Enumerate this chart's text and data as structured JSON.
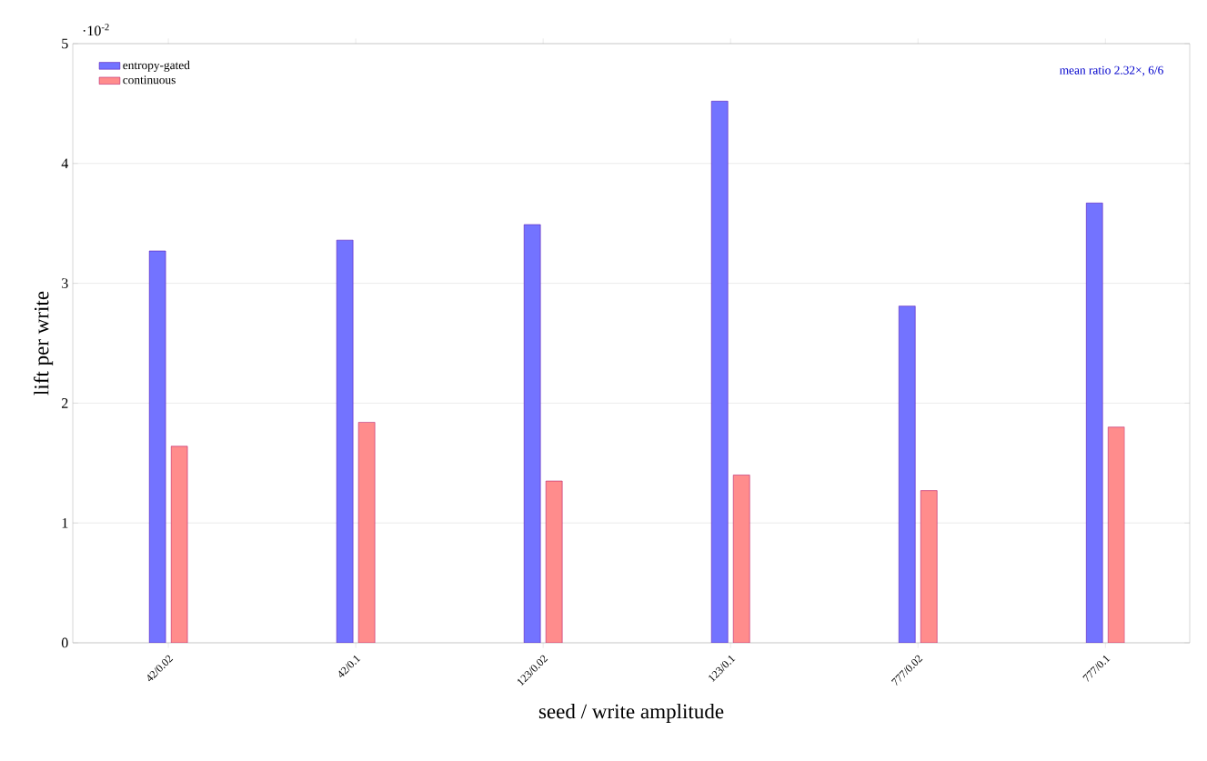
{
  "chart_data": {
    "type": "bar",
    "xlabel": "seed / write amplitude",
    "ylabel": "lift per write",
    "categories": [
      "42/0.02",
      "42/0.1",
      "123/0.02",
      "123/0.1",
      "777/0.02",
      "777/0.1"
    ],
    "series": [
      {
        "name": "entropy-gated",
        "color": "#7373ff",
        "values": [
          3.27,
          3.36,
          3.49,
          4.52,
          2.81,
          3.67
        ]
      },
      {
        "name": "continuous",
        "color": "#ff8c8c",
        "values": [
          1.64,
          1.84,
          1.35,
          1.4,
          1.27,
          1.8
        ]
      }
    ],
    "ylim": [
      0,
      5
    ],
    "yticks": [
      0,
      1,
      2,
      3,
      4,
      5
    ],
    "annotations": [
      "·10$^{-2}$",
      "mean ratio 2.32×, 6/6"
    ],
    "grid": "y",
    "legend": "top left"
  }
}
